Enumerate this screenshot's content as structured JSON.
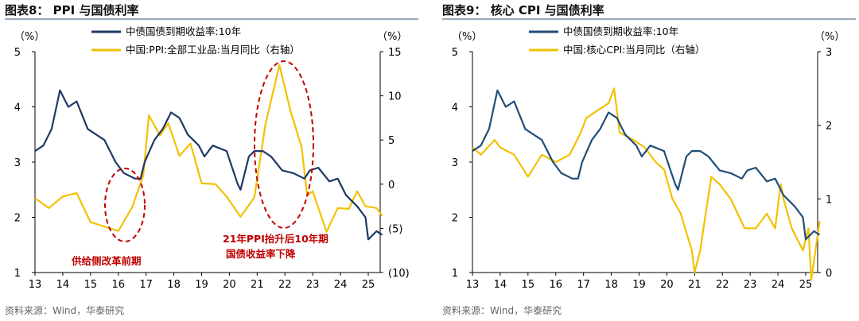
{
  "chart_data": [
    {
      "type": "line",
      "title": "图表8： PPI 与国债利率",
      "source": "资料来源：Wind，华泰研究",
      "left_unit": "（%）",
      "right_unit": "（%）",
      "left_ticks": [
        "1",
        "2",
        "3",
        "4",
        "5"
      ],
      "left_ylim": [
        1,
        5
      ],
      "right_ticks": [
        "(10)",
        "(5)",
        "0",
        "5",
        "10",
        "15"
      ],
      "right_ylim": [
        -10,
        15
      ],
      "x_ticks": [
        "13",
        "14",
        "15",
        "16",
        "17",
        "18",
        "19",
        "20",
        "21",
        "22",
        "23",
        "24",
        "25"
      ],
      "series": [
        {
          "name": "中债国债到期收益率:10年",
          "axis": "left",
          "color": "#1f3864",
          "points": [
            [
              2013.0,
              3.2
            ],
            [
              2013.3,
              3.3
            ],
            [
              2013.6,
              3.6
            ],
            [
              2013.9,
              4.3
            ],
            [
              2014.2,
              4.0
            ],
            [
              2014.5,
              4.1
            ],
            [
              2014.9,
              3.6
            ],
            [
              2015.2,
              3.5
            ],
            [
              2015.5,
              3.4
            ],
            [
              2015.9,
              3.0
            ],
            [
              2016.2,
              2.8
            ],
            [
              2016.6,
              2.7
            ],
            [
              2016.8,
              2.7
            ],
            [
              2016.95,
              3.0
            ],
            [
              2017.3,
              3.4
            ],
            [
              2017.6,
              3.6
            ],
            [
              2017.9,
              3.9
            ],
            [
              2018.2,
              3.8
            ],
            [
              2018.5,
              3.5
            ],
            [
              2018.9,
              3.3
            ],
            [
              2019.1,
              3.1
            ],
            [
              2019.4,
              3.3
            ],
            [
              2019.9,
              3.2
            ],
            [
              2020.3,
              2.6
            ],
            [
              2020.4,
              2.5
            ],
            [
              2020.7,
              3.1
            ],
            [
              2020.9,
              3.2
            ],
            [
              2021.2,
              3.2
            ],
            [
              2021.5,
              3.1
            ],
            [
              2021.9,
              2.85
            ],
            [
              2022.3,
              2.8
            ],
            [
              2022.7,
              2.7
            ],
            [
              2022.9,
              2.85
            ],
            [
              2023.2,
              2.9
            ],
            [
              2023.6,
              2.65
            ],
            [
              2023.9,
              2.7
            ],
            [
              2024.2,
              2.4
            ],
            [
              2024.6,
              2.2
            ],
            [
              2024.9,
              2.0
            ],
            [
              2025.0,
              1.6
            ],
            [
              2025.3,
              1.75
            ],
            [
              2025.5,
              1.68
            ]
          ]
        },
        {
          "name": "中国:PPI:全部工业品:当月同比（右轴）",
          "axis": "right",
          "color": "#f2c100",
          "points": [
            [
              2013.0,
              -1.6
            ],
            [
              2013.5,
              -2.7
            ],
            [
              2014.0,
              -1.4
            ],
            [
              2014.5,
              -1.0
            ],
            [
              2015.0,
              -4.3
            ],
            [
              2015.5,
              -4.8
            ],
            [
              2016.0,
              -5.3
            ],
            [
              2016.5,
              -2.6
            ],
            [
              2016.9,
              1.0
            ],
            [
              2017.1,
              7.8
            ],
            [
              2017.5,
              5.5
            ],
            [
              2017.8,
              6.9
            ],
            [
              2018.2,
              3.2
            ],
            [
              2018.6,
              4.6
            ],
            [
              2019.0,
              0.1
            ],
            [
              2019.5,
              0.0
            ],
            [
              2019.9,
              -1.4
            ],
            [
              2020.4,
              -3.7
            ],
            [
              2020.9,
              -1.5
            ],
            [
              2021.3,
              6.8
            ],
            [
              2021.8,
              13.5
            ],
            [
              2022.2,
              8.3
            ],
            [
              2022.6,
              4.2
            ],
            [
              2022.8,
              -1.3
            ],
            [
              2023.0,
              -0.8
            ],
            [
              2023.5,
              -5.4
            ],
            [
              2023.9,
              -2.7
            ],
            [
              2024.3,
              -2.8
            ],
            [
              2024.6,
              -0.8
            ],
            [
              2024.9,
              -2.5
            ],
            [
              2025.3,
              -2.7
            ],
            [
              2025.5,
              -3.6
            ]
          ]
        }
      ],
      "annotations": [
        "供给侧改革前期",
        "21年PPI抬升后10年期",
        "国债收益率下降"
      ]
    },
    {
      "type": "line",
      "title": "图表9： 核心 CPI 与国债利率",
      "source": "资料来源：Wind，华泰研究",
      "left_unit": "（%）",
      "right_unit": "（%）",
      "left_ticks": [
        "1",
        "2",
        "3",
        "4",
        "5"
      ],
      "left_ylim": [
        1,
        5
      ],
      "right_ticks": [
        "0",
        "1",
        "2",
        "3"
      ],
      "right_ylim": [
        0,
        3
      ],
      "x_ticks": [
        "13",
        "14",
        "15",
        "16",
        "17",
        "18",
        "19",
        "20",
        "21",
        "22",
        "23",
        "24",
        "25"
      ],
      "series": [
        {
          "name": "中债国债到期收益率:10年",
          "axis": "left",
          "color": "#1f4e79",
          "points": [
            [
              2013.0,
              3.2
            ],
            [
              2013.3,
              3.3
            ],
            [
              2013.6,
              3.6
            ],
            [
              2013.9,
              4.3
            ],
            [
              2014.2,
              4.0
            ],
            [
              2014.5,
              4.1
            ],
            [
              2014.9,
              3.6
            ],
            [
              2015.2,
              3.5
            ],
            [
              2015.5,
              3.4
            ],
            [
              2015.9,
              3.0
            ],
            [
              2016.2,
              2.8
            ],
            [
              2016.6,
              2.7
            ],
            [
              2016.8,
              2.7
            ],
            [
              2016.95,
              3.0
            ],
            [
              2017.3,
              3.4
            ],
            [
              2017.6,
              3.6
            ],
            [
              2017.9,
              3.9
            ],
            [
              2018.2,
              3.8
            ],
            [
              2018.5,
              3.5
            ],
            [
              2018.9,
              3.3
            ],
            [
              2019.1,
              3.1
            ],
            [
              2019.4,
              3.3
            ],
            [
              2019.9,
              3.2
            ],
            [
              2020.3,
              2.6
            ],
            [
              2020.4,
              2.5
            ],
            [
              2020.7,
              3.1
            ],
            [
              2020.9,
              3.2
            ],
            [
              2021.2,
              3.2
            ],
            [
              2021.5,
              3.1
            ],
            [
              2021.9,
              2.85
            ],
            [
              2022.3,
              2.8
            ],
            [
              2022.7,
              2.7
            ],
            [
              2022.9,
              2.85
            ],
            [
              2023.2,
              2.9
            ],
            [
              2023.6,
              2.65
            ],
            [
              2023.9,
              2.7
            ],
            [
              2024.2,
              2.4
            ],
            [
              2024.6,
              2.2
            ],
            [
              2024.9,
              2.0
            ],
            [
              2025.0,
              1.6
            ],
            [
              2025.3,
              1.75
            ],
            [
              2025.5,
              1.68
            ]
          ]
        },
        {
          "name": "中国:核心CPI:当月同比（右轴）",
          "axis": "right",
          "color": "#f2c100",
          "points": [
            [
              2013.0,
              1.7
            ],
            [
              2013.3,
              1.6
            ],
            [
              2013.8,
              1.8
            ],
            [
              2014.0,
              1.7
            ],
            [
              2014.5,
              1.6
            ],
            [
              2015.0,
              1.3
            ],
            [
              2015.5,
              1.6
            ],
            [
              2016.0,
              1.5
            ],
            [
              2016.5,
              1.6
            ],
            [
              2016.9,
              1.9
            ],
            [
              2017.1,
              2.1
            ],
            [
              2017.5,
              2.2
            ],
            [
              2017.9,
              2.3
            ],
            [
              2018.1,
              2.5
            ],
            [
              2018.3,
              1.9
            ],
            [
              2018.8,
              1.8
            ],
            [
              2019.2,
              1.7
            ],
            [
              2019.6,
              1.5
            ],
            [
              2019.9,
              1.4
            ],
            [
              2020.2,
              1.0
            ],
            [
              2020.5,
              0.8
            ],
            [
              2020.9,
              0.3
            ],
            [
              2021.0,
              0.0
            ],
            [
              2021.2,
              0.3
            ],
            [
              2021.6,
              1.3
            ],
            [
              2021.9,
              1.2
            ],
            [
              2022.3,
              1.0
            ],
            [
              2022.8,
              0.6
            ],
            [
              2023.2,
              0.6
            ],
            [
              2023.6,
              0.8
            ],
            [
              2023.9,
              0.6
            ],
            [
              2024.1,
              1.2
            ],
            [
              2024.2,
              1.0
            ],
            [
              2024.5,
              0.6
            ],
            [
              2024.9,
              0.3
            ],
            [
              2025.1,
              0.6
            ],
            [
              2025.2,
              -0.1
            ],
            [
              2025.5,
              0.7
            ]
          ]
        }
      ],
      "annotations": []
    }
  ]
}
